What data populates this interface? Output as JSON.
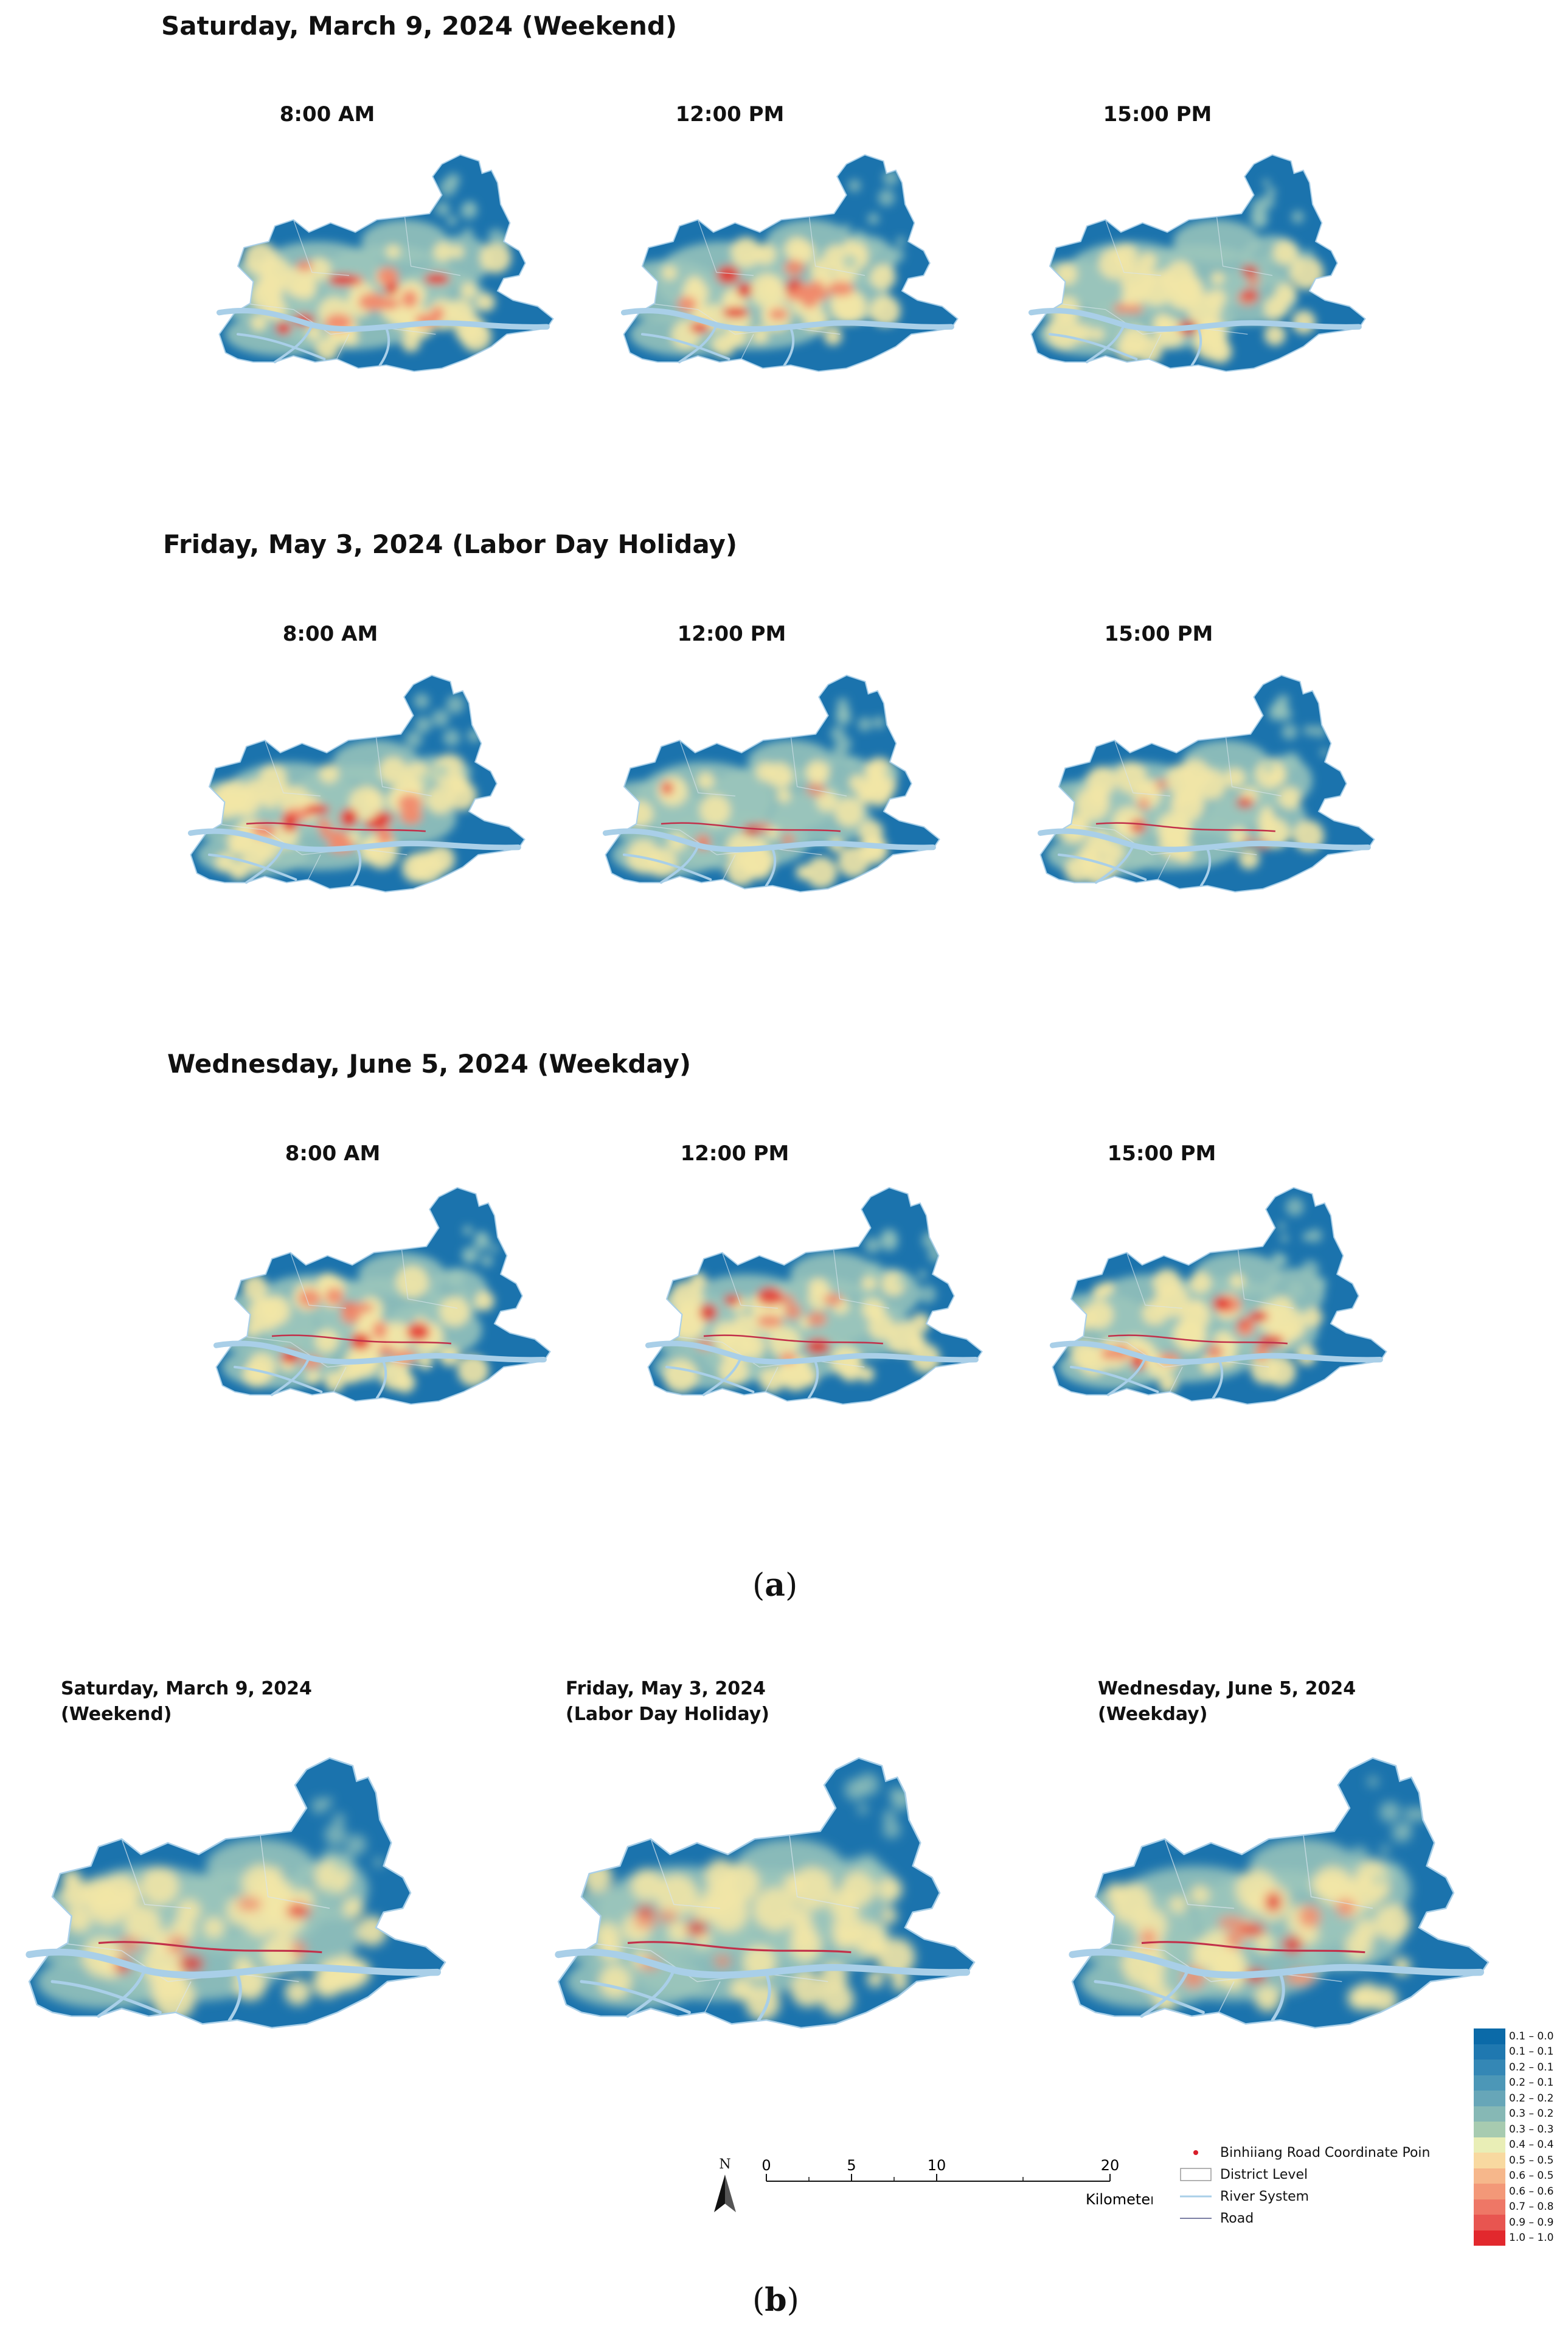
{
  "panel_a": {
    "rows": [
      {
        "title": "Saturday, March 9, 2024 (Weekend)",
        "times": [
          "8:00 AM",
          "12:00 PM",
          "15:00 PM"
        ]
      },
      {
        "title": "Friday, May 3, 2024 (Labor Day Holiday)",
        "times": [
          "8:00 AM",
          "12:00 PM",
          "15:00 PM"
        ]
      },
      {
        "title": "Wednesday, June 5, 2024 (Weekday)",
        "times": [
          "8:00 AM",
          "12:00 PM",
          "15:00 PM"
        ]
      }
    ],
    "caption_letter": "a"
  },
  "panel_b": {
    "titles": [
      {
        "line1": "Saturday, March 9, 2024",
        "line2": "(Weekend)"
      },
      {
        "line1": "Friday, May 3, 2024",
        "line2": "(Labor Day Holiday)"
      },
      {
        "line1": "Wednesday, June 5, 2024",
        "line2": "(Weekday)"
      }
    ],
    "caption_letter": "b"
  },
  "legend": {
    "ramp": [
      {
        "label": "0.1 – 0.0",
        "color": "#0b6aa8"
      },
      {
        "label": "0.1 – 0.1",
        "color": "#1f78b0"
      },
      {
        "label": "0.2 – 0.1",
        "color": "#3487b5"
      },
      {
        "label": "0.2 – 0.1",
        "color": "#4c97b7"
      },
      {
        "label": "0.2 – 0.2",
        "color": "#67a6b8"
      },
      {
        "label": "0.3 – 0.2",
        "color": "#86b8b5"
      },
      {
        "label": "0.3 – 0.3",
        "color": "#a7cbb0"
      },
      {
        "label": "0.4 – 0.4",
        "color": "#e9eeb6"
      },
      {
        "label": "0.5 – 0.5",
        "color": "#f8d9a0"
      },
      {
        "label": "0.6 – 0.5",
        "color": "#f6b78b"
      },
      {
        "label": "0.6 – 0.6",
        "color": "#f39878"
      },
      {
        "label": "0.7 – 0.8",
        "color": "#ee7766"
      },
      {
        "label": "0.9 – 0.9",
        "color": "#e85550"
      },
      {
        "label": "1.0 – 1.0",
        "color": "#e2282d"
      }
    ],
    "items": [
      {
        "label": "Binhiiang Road Coordinate Poin",
        "symbol": "red-dot"
      },
      {
        "label": "District Level",
        "symbol": "box"
      },
      {
        "label": "River System",
        "symbol": "river-line"
      },
      {
        "label": "Road",
        "symbol": "road-line"
      }
    ],
    "scale": {
      "ticks": [
        "0",
        "5",
        "10",
        "20"
      ],
      "unit": "Kilometer"
    },
    "north": "N"
  },
  "intensity_grid": {
    "a": [
      [
        {
          "hot": 0.9,
          "road": false
        },
        {
          "hot": 0.85,
          "road": false
        },
        {
          "hot": 0.45,
          "road": false
        }
      ],
      [
        {
          "hot": 0.9,
          "road": true
        },
        {
          "hot": 0.45,
          "road": true
        },
        {
          "hot": 0.35,
          "road": true
        }
      ],
      [
        {
          "hot": 0.75,
          "road": true
        },
        {
          "hot": 0.7,
          "road": true
        },
        {
          "hot": 0.8,
          "road": true
        }
      ]
    ],
    "b": [
      {
        "hot": 0.5,
        "road": true
      },
      {
        "hot": 0.35,
        "road": true
      },
      {
        "hot": 0.7,
        "road": true
      }
    ]
  },
  "colors": {
    "ocean_blue": "#1b73ad",
    "mid": "#9cc7bb",
    "warm": "#f2e6a6",
    "hot": "#e43a33",
    "river": "#a9cfe8",
    "road": "#c2304a"
  }
}
